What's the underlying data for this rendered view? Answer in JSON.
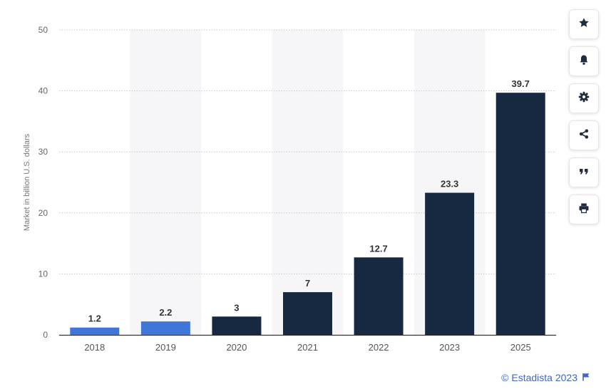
{
  "chart_data": {
    "type": "bar",
    "title": "",
    "xlabel": "",
    "ylabel": "Market in billion U.S. dollars",
    "categories": [
      "2018",
      "2019",
      "2020",
      "2021",
      "2022",
      "2023",
      "2025"
    ],
    "values": [
      1.2,
      2.2,
      3,
      7,
      12.7,
      23.3,
      39.7
    ],
    "value_labels": [
      "1.2",
      "2.2",
      "3",
      "7",
      "12.7",
      "23.3",
      "39.7"
    ],
    "yticks": [
      "0",
      "10",
      "20",
      "30",
      "40",
      "50"
    ],
    "ylim": [
      0,
      50
    ],
    "grid": true,
    "colors": {
      "actual": "#3f76d8",
      "forecast": "#172841",
      "bar_by_index": [
        "#3f76d8",
        "#3f76d8",
        "#172841",
        "#172841",
        "#172841",
        "#172841",
        "#172841"
      ],
      "band": "#f6f6f8",
      "grid": "#c8c8c8"
    }
  },
  "toolbar": [
    {
      "icon": "star-icon",
      "name": "favorite-button"
    },
    {
      "icon": "bell-icon",
      "name": "notification-button"
    },
    {
      "icon": "gear-icon",
      "name": "settings-button"
    },
    {
      "icon": "share-icon",
      "name": "share-button"
    },
    {
      "icon": "quote-icon",
      "name": "cite-button"
    },
    {
      "icon": "print-icon",
      "name": "print-button"
    }
  ],
  "credit": {
    "text": "© Estadista 2023",
    "icon": "flag-icon",
    "color": "#3e66c6"
  }
}
